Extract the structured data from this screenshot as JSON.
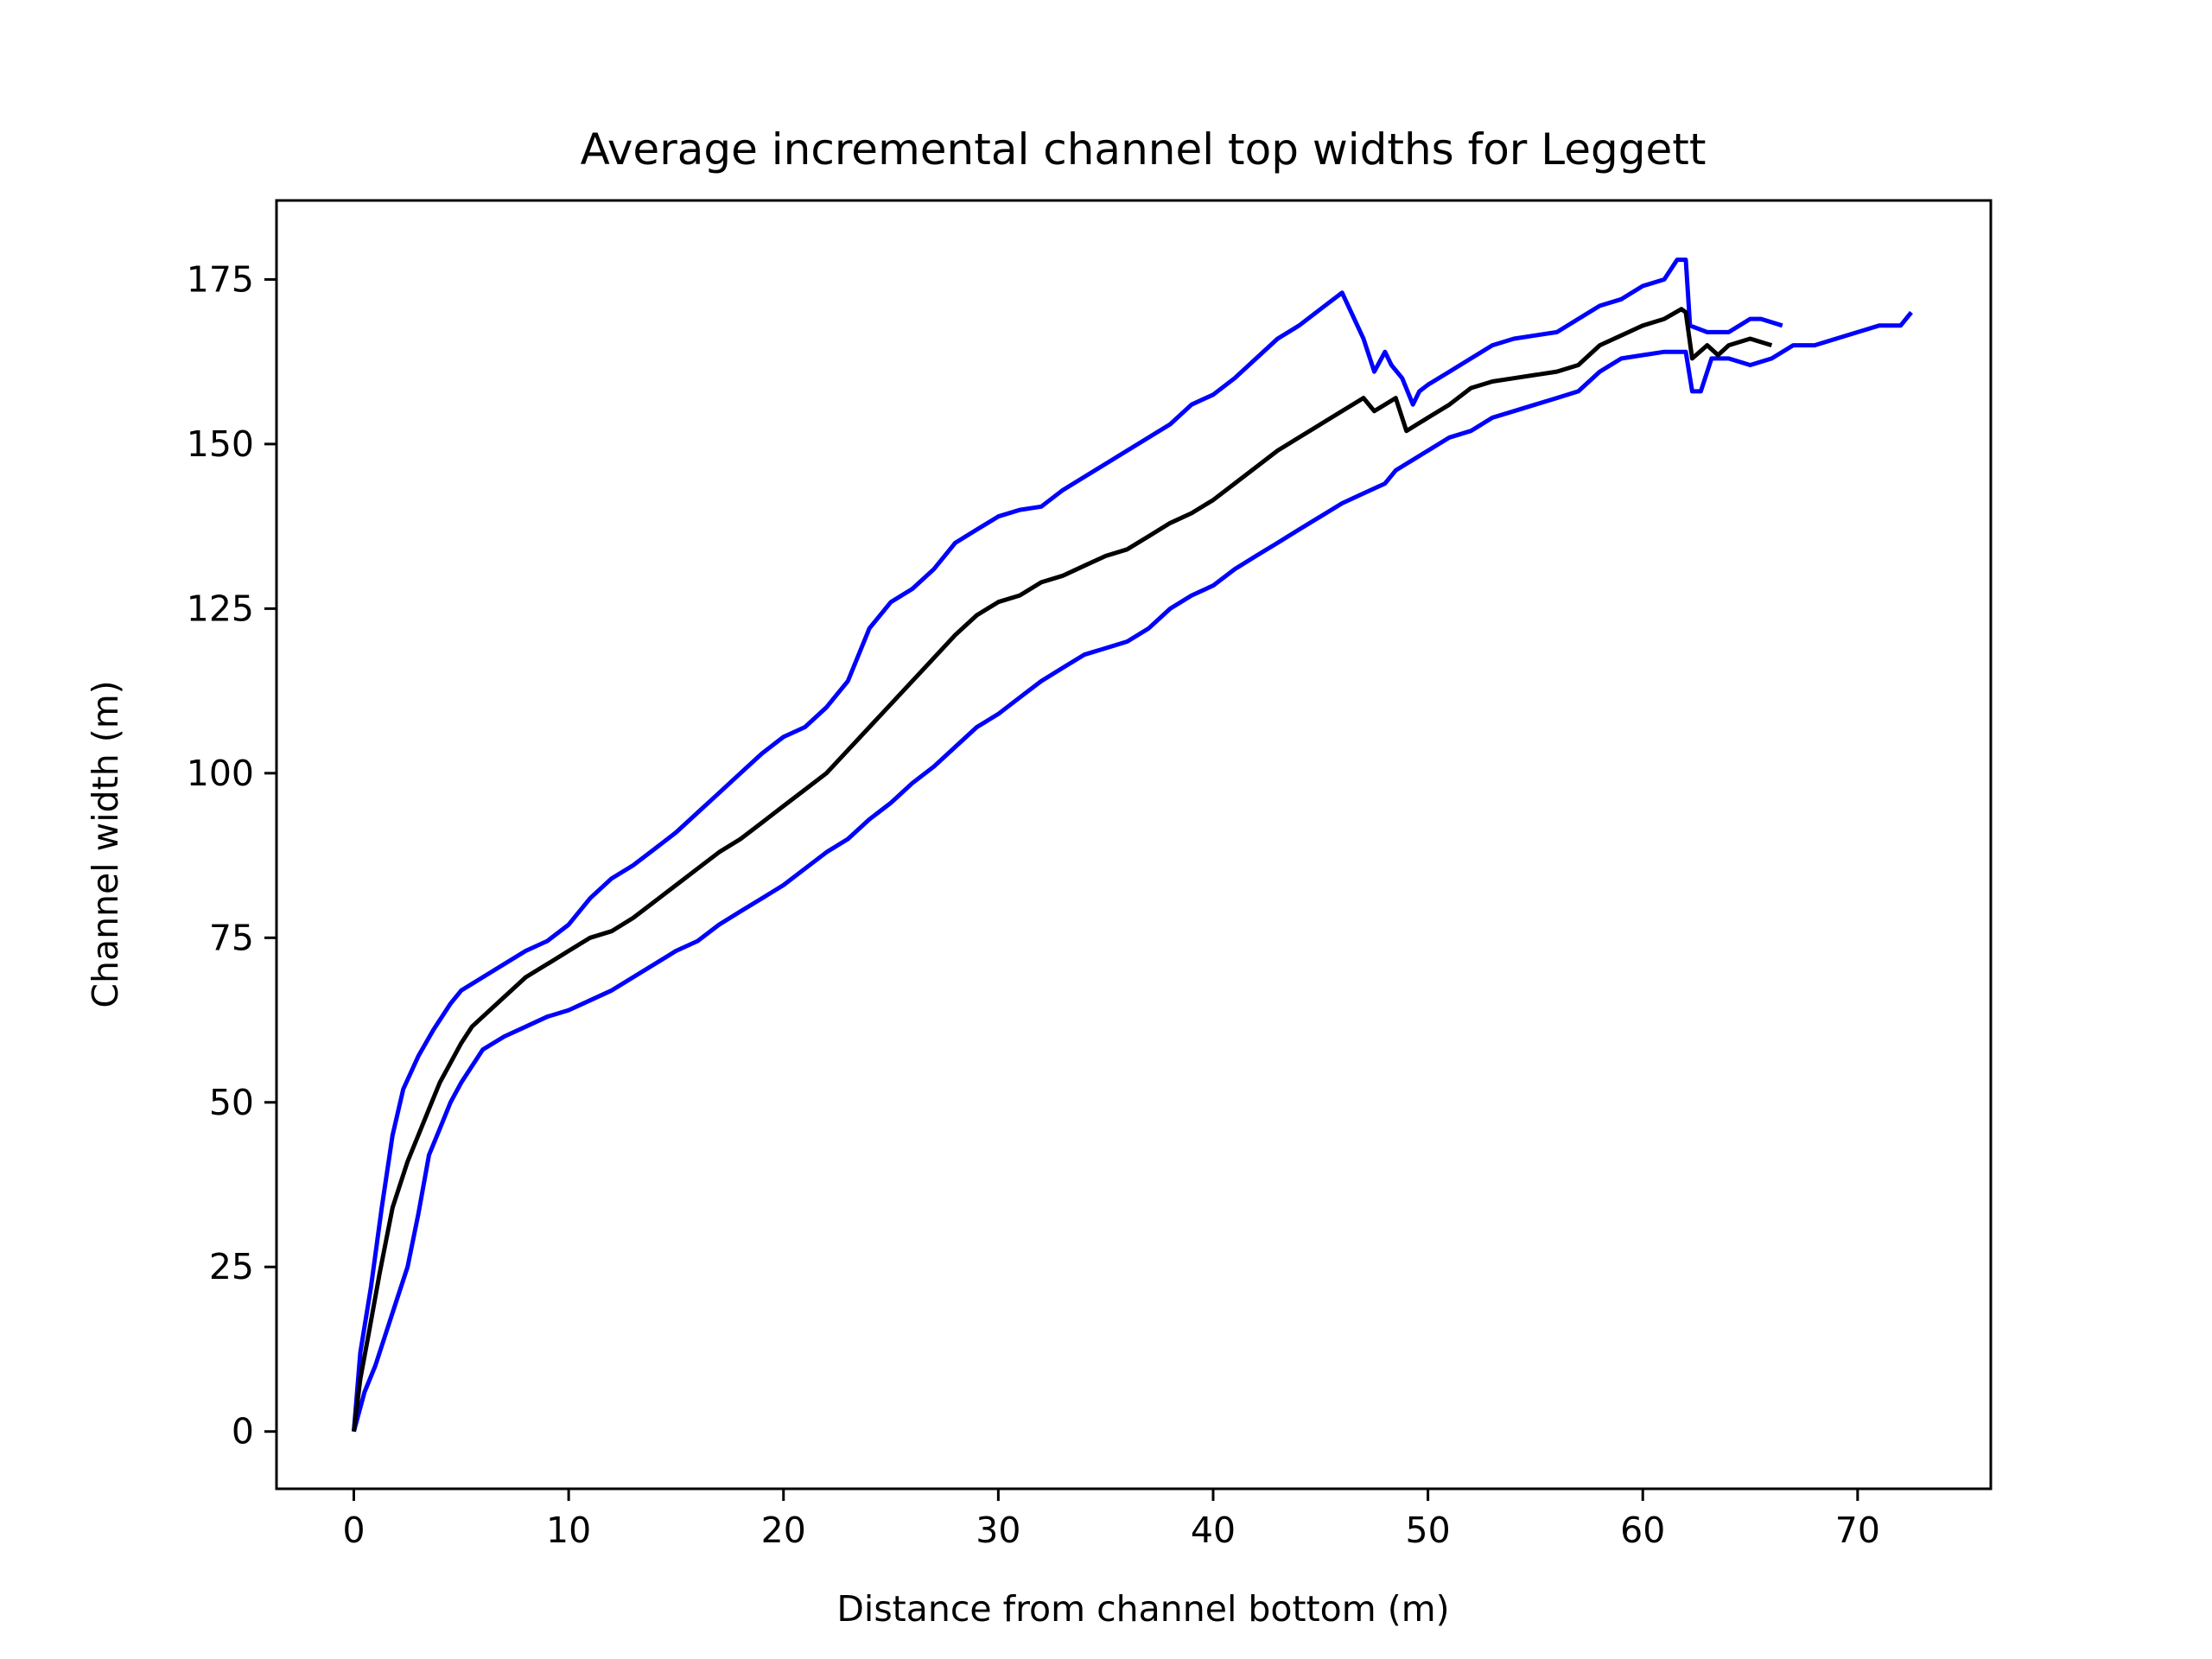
{
  "chart_data": {
    "type": "line",
    "title": "Average incremental channel top widths for Leggett",
    "xlabel": "Distance from channel bottom (m)",
    "ylabel": "Channel width (m)",
    "xlim": [
      -3.6,
      76.2
    ],
    "ylim": [
      -8.7,
      187
    ],
    "xticks": [
      0,
      10,
      20,
      30,
      40,
      50,
      60,
      70
    ],
    "yticks": [
      0,
      25,
      50,
      75,
      100,
      125,
      150,
      175
    ],
    "grid": false,
    "legend": "none",
    "series": [
      {
        "color": "#0000ff",
        "x": [
          0,
          0.3,
          0.8,
          1.3,
          1.8,
          2.3,
          3,
          3.7,
          4.5,
          5,
          6,
          7,
          8,
          9,
          10,
          11,
          12,
          13,
          14,
          15,
          16,
          17,
          18,
          19,
          20,
          21,
          22,
          23,
          24,
          25,
          26,
          27,
          28,
          29,
          30,
          31,
          32,
          33,
          34,
          35,
          36,
          37,
          38,
          39,
          40,
          41,
          42,
          43,
          44,
          45,
          46,
          47,
          47.5,
          48,
          48.3,
          48.8,
          49.3,
          49.6,
          50,
          51,
          52,
          53,
          54,
          55,
          56,
          57,
          58,
          59,
          60,
          61,
          61.6,
          62,
          62.2,
          63,
          64,
          65,
          65.5,
          66.5
        ],
        "y": [
          0,
          12,
          22,
          34,
          45,
          52,
          57,
          61,
          65,
          67,
          69,
          71,
          73,
          74.5,
          77,
          81,
          84,
          86,
          88.5,
          91,
          94,
          97,
          100,
          103,
          105.5,
          107,
          110,
          114,
          122,
          126,
          128,
          131,
          135,
          137,
          139,
          140,
          140.5,
          143,
          145,
          147,
          149,
          151,
          153,
          156,
          157.5,
          160,
          163,
          166,
          168,
          170.5,
          173,
          166,
          161,
          164,
          162,
          160,
          156,
          158,
          159,
          161,
          163,
          165,
          166,
          166.5,
          167,
          169,
          171,
          172,
          174,
          175,
          178,
          178,
          168,
          167,
          167,
          169,
          169,
          168
        ]
      },
      {
        "color": "#0000ff",
        "x": [
          0,
          0.5,
          1,
          1.5,
          2,
          2.5,
          3,
          3.5,
          4,
          4.5,
          5,
          6,
          7,
          8,
          9,
          10,
          11,
          12,
          13,
          14,
          15,
          16,
          17,
          18,
          19,
          20,
          21,
          22,
          23,
          24,
          25,
          26,
          27,
          28,
          29,
          30,
          31,
          32,
          33,
          34,
          35,
          36,
          37,
          38,
          39,
          40,
          41,
          42,
          43,
          44,
          45,
          46,
          47,
          48,
          48.5,
          49,
          49.5,
          50,
          51,
          52,
          53,
          54,
          55,
          56,
          57,
          58,
          59,
          60,
          61,
          62,
          62.3,
          62.7,
          63.2,
          64,
          65,
          66,
          67,
          68,
          69,
          70,
          71,
          72,
          72.5
        ],
        "y": [
          0,
          6,
          10,
          15,
          20,
          25,
          33,
          42,
          46,
          50,
          53,
          58,
          60,
          61.5,
          63,
          64,
          65.5,
          67,
          69,
          71,
          73,
          74.5,
          77,
          79,
          81,
          83,
          85.5,
          88,
          90,
          93,
          95.5,
          98.5,
          101,
          104,
          107,
          109,
          111.5,
          114,
          116,
          118,
          119,
          120,
          122,
          125,
          127,
          128.5,
          131,
          133,
          135,
          137,
          139,
          141,
          142.5,
          144,
          146,
          147,
          148,
          149,
          151,
          152,
          154,
          155,
          156,
          157,
          158,
          161,
          163,
          163.5,
          164,
          164,
          158,
          158,
          163,
          163,
          162,
          163,
          165,
          165,
          166,
          167,
          168,
          168,
          170
        ]
      },
      {
        "color": "#000000",
        "x": [
          0,
          0.3,
          0.7,
          1.2,
          1.8,
          2.5,
          3,
          3.5,
          4,
          4.5,
          5,
          5.5,
          6,
          7,
          8,
          9,
          10,
          11,
          12,
          13,
          14,
          15,
          16,
          17,
          18,
          19,
          20,
          21,
          22,
          23,
          24,
          25,
          26,
          27,
          28,
          29,
          30,
          31,
          32,
          33,
          34,
          35,
          36,
          37,
          38,
          39,
          40,
          41,
          42,
          43,
          44,
          45,
          46,
          47,
          47.5,
          48,
          48.5,
          49,
          49.5,
          50,
          51,
          52,
          53,
          54,
          55,
          56,
          57,
          58,
          59,
          60,
          61,
          61.8,
          62,
          62.3,
          63,
          63.5,
          64,
          65,
          66
        ],
        "y": [
          0,
          8,
          15,
          24,
          34,
          41,
          45,
          49,
          53,
          56,
          59,
          61.5,
          63,
          66,
          69,
          71,
          73,
          75,
          76,
          78,
          80.5,
          83,
          85.5,
          88,
          90,
          92.5,
          95,
          97.5,
          100,
          103.5,
          107,
          110.5,
          114,
          117.5,
          121,
          124,
          126,
          127,
          129,
          130,
          131.5,
          133,
          134,
          136,
          138,
          139.5,
          141.5,
          144,
          146.5,
          149,
          151,
          153,
          155,
          157,
          155,
          156,
          157,
          152,
          153,
          154,
          156,
          158.5,
          159.5,
          160,
          160.5,
          161,
          162,
          165,
          166.5,
          168,
          169,
          170.5,
          170,
          163,
          165,
          163.5,
          165,
          166,
          165
        ]
      }
    ]
  }
}
